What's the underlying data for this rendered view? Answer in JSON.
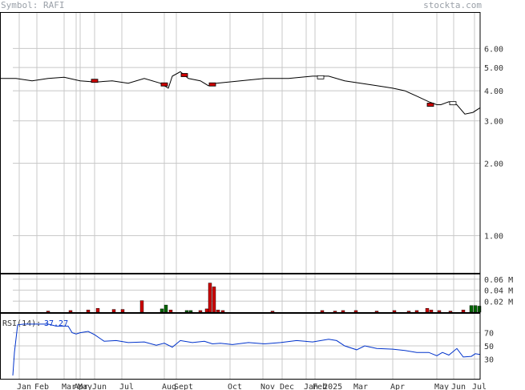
{
  "header": {
    "symbol_label": "Symbol:",
    "symbol": "RAFI",
    "site": "stockta.com"
  },
  "chart_data": [
    {
      "type": "candlestick",
      "panel": "price",
      "scale": "log",
      "ylim": [
        0.7,
        8.5
      ],
      "y_ticks": [
        "6.00",
        "5.00",
        "4.00",
        "3.00",
        "2.00",
        "1.00"
      ],
      "y_tick_values": [
        6,
        5,
        4,
        3,
        2,
        1
      ],
      "x_ticks": [
        "Jan",
        "Feb",
        "Mar",
        "Apr",
        "May",
        "Jun",
        "Jul",
        "Aug",
        "Sept",
        "Oct",
        "Nov",
        "Dec",
        "Jan 2025",
        "Feb",
        "Mar",
        "Apr",
        "May",
        "Jun",
        "Jul"
      ],
      "close_profile": [
        [
          0,
          4.5
        ],
        [
          20,
          4.5
        ],
        [
          40,
          4.4
        ],
        [
          60,
          4.5
        ],
        [
          80,
          4.55
        ],
        [
          100,
          4.4
        ],
        [
          120,
          4.35
        ],
        [
          140,
          4.4
        ],
        [
          160,
          4.3
        ],
        [
          180,
          4.5
        ],
        [
          200,
          4.3
        ],
        [
          210,
          4.1
        ],
        [
          215,
          4.6
        ],
        [
          225,
          4.8
        ],
        [
          235,
          4.5
        ],
        [
          250,
          4.4
        ],
        [
          260,
          4.2
        ],
        [
          270,
          4.3
        ],
        [
          300,
          4.4
        ],
        [
          330,
          4.5
        ],
        [
          360,
          4.5
        ],
        [
          390,
          4.6
        ],
        [
          410,
          4.6
        ],
        [
          430,
          4.4
        ],
        [
          450,
          4.3
        ],
        [
          470,
          4.2
        ],
        [
          490,
          4.1
        ],
        [
          505,
          4.0
        ],
        [
          520,
          3.8
        ],
        [
          535,
          3.6
        ],
        [
          545,
          3.5
        ],
        [
          550,
          3.5
        ],
        [
          560,
          3.6
        ],
        [
          570,
          3.5
        ],
        [
          580,
          3.2
        ],
        [
          590,
          3.25
        ],
        [
          599,
          3.4
        ]
      ]
    },
    {
      "type": "bar",
      "panel": "volume",
      "ylim": [
        0,
        0.07
      ],
      "y_ticks": [
        "0.06 M",
        "0.04 M",
        "0.02 M"
      ],
      "y_tick_values": [
        0.06,
        0.04,
        0.02
      ],
      "up_color": "#006600",
      "down_color": "#cc0000",
      "bars": [
        {
          "x": 60,
          "v": 0.002,
          "up": false
        },
        {
          "x": 88,
          "v": 0.003,
          "up": false
        },
        {
          "x": 110,
          "v": 0.004,
          "up": false
        },
        {
          "x": 122,
          "v": 0.007,
          "up": false
        },
        {
          "x": 142,
          "v": 0.005,
          "up": false
        },
        {
          "x": 153,
          "v": 0.005,
          "up": false
        },
        {
          "x": 177,
          "v": 0.021,
          "up": false
        },
        {
          "x": 202,
          "v": 0.006,
          "up": true
        },
        {
          "x": 207,
          "v": 0.013,
          "up": true
        },
        {
          "x": 213,
          "v": 0.004,
          "up": false
        },
        {
          "x": 233,
          "v": 0.003,
          "up": true
        },
        {
          "x": 238,
          "v": 0.003,
          "up": true
        },
        {
          "x": 250,
          "v": 0.003,
          "up": false
        },
        {
          "x": 258,
          "v": 0.006,
          "up": false
        },
        {
          "x": 262,
          "v": 0.053,
          "up": false
        },
        {
          "x": 267,
          "v": 0.046,
          "up": false
        },
        {
          "x": 272,
          "v": 0.004,
          "up": false
        },
        {
          "x": 278,
          "v": 0.003,
          "up": false
        },
        {
          "x": 340,
          "v": 0.002,
          "up": false
        },
        {
          "x": 402,
          "v": 0.003,
          "up": false
        },
        {
          "x": 418,
          "v": 0.002,
          "up": false
        },
        {
          "x": 428,
          "v": 0.003,
          "up": false
        },
        {
          "x": 444,
          "v": 0.003,
          "up": false
        },
        {
          "x": 470,
          "v": 0.002,
          "up": false
        },
        {
          "x": 492,
          "v": 0.003,
          "up": false
        },
        {
          "x": 510,
          "v": 0.002,
          "up": false
        },
        {
          "x": 520,
          "v": 0.003,
          "up": false
        },
        {
          "x": 533,
          "v": 0.007,
          "up": false
        },
        {
          "x": 538,
          "v": 0.004,
          "up": false
        },
        {
          "x": 548,
          "v": 0.003,
          "up": false
        },
        {
          "x": 562,
          "v": 0.002,
          "up": false
        },
        {
          "x": 578,
          "v": 0.004,
          "up": false
        },
        {
          "x": 588,
          "v": 0.012,
          "up": true
        },
        {
          "x": 593,
          "v": 0.012,
          "up": true
        },
        {
          "x": 598,
          "v": 0.011,
          "up": true
        }
      ]
    },
    {
      "type": "line",
      "panel": "rsi",
      "label": "RSI(14):",
      "value": "37.27",
      "ylim": [
        0,
        100
      ],
      "y_ticks": [
        "70",
        "50",
        "30"
      ],
      "y_tick_values": [
        70,
        50,
        30
      ],
      "line_color": "#0033cc",
      "points": [
        [
          16,
          5
        ],
        [
          18,
          40
        ],
        [
          22,
          82
        ],
        [
          30,
          83
        ],
        [
          60,
          83
        ],
        [
          70,
          80
        ],
        [
          85,
          80
        ],
        [
          90,
          70
        ],
        [
          95,
          68
        ],
        [
          100,
          70
        ],
        [
          110,
          72
        ],
        [
          118,
          67
        ],
        [
          130,
          57
        ],
        [
          145,
          58
        ],
        [
          160,
          55
        ],
        [
          180,
          56
        ],
        [
          195,
          51
        ],
        [
          205,
          54
        ],
        [
          215,
          48
        ],
        [
          225,
          58
        ],
        [
          240,
          55
        ],
        [
          255,
          57
        ],
        [
          265,
          53
        ],
        [
          275,
          54
        ],
        [
          290,
          52
        ],
        [
          310,
          55
        ],
        [
          330,
          53
        ],
        [
          350,
          55
        ],
        [
          370,
          58
        ],
        [
          390,
          56
        ],
        [
          410,
          60
        ],
        [
          420,
          58
        ],
        [
          430,
          50
        ],
        [
          445,
          44
        ],
        [
          455,
          50
        ],
        [
          470,
          46
        ],
        [
          490,
          45
        ],
        [
          505,
          43
        ],
        [
          520,
          40
        ],
        [
          535,
          40
        ],
        [
          545,
          35
        ],
        [
          552,
          40
        ],
        [
          560,
          36
        ],
        [
          570,
          46
        ],
        [
          578,
          33
        ],
        [
          588,
          34
        ],
        [
          593,
          38
        ],
        [
          599,
          37
        ]
      ]
    }
  ]
}
